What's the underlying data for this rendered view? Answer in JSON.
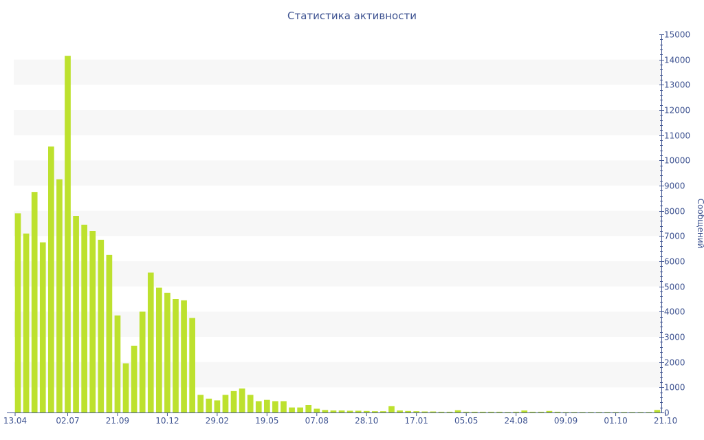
{
  "chart_data": {
    "type": "bar",
    "title": "Статистика активности",
    "ylabel": "Сообщений",
    "y_axis_side": "right",
    "ylim": [
      0,
      15000
    ],
    "yticks": [
      0,
      1000,
      2000,
      3000,
      4000,
      5000,
      6000,
      7000,
      8000,
      9000,
      10000,
      11000,
      12000,
      13000,
      14000,
      15000
    ],
    "grid": "alternating horizontal bands",
    "x_tick_labels": [
      "13.04",
      "02.07",
      "21.09",
      "10.12",
      "29.02",
      "19.05",
      "07.08",
      "28.10",
      "17.01",
      "05.05",
      "24.08",
      "09.09",
      "01.10",
      "21.10"
    ],
    "bar_color": "#bde12e",
    "band_color": "#f7f7f7",
    "axis_color": "#3e5391",
    "values": [
      7900,
      7100,
      8750,
      6750,
      10550,
      9250,
      14150,
      7800,
      7450,
      7200,
      6850,
      6250,
      3850,
      1950,
      2650,
      4000,
      5550,
      4950,
      4750,
      4500,
      4450,
      3750,
      700,
      550,
      480,
      700,
      850,
      950,
      700,
      450,
      500,
      450,
      450,
      200,
      200,
      300,
      150,
      100,
      80,
      80,
      70,
      70,
      60,
      50,
      50,
      250,
      80,
      60,
      50,
      40,
      40,
      30,
      30,
      90,
      30,
      30,
      30,
      30,
      30,
      20,
      30,
      80,
      30,
      30,
      60,
      30,
      20,
      20,
      20,
      20,
      20,
      20,
      20,
      20,
      20,
      20,
      20,
      100
    ]
  }
}
